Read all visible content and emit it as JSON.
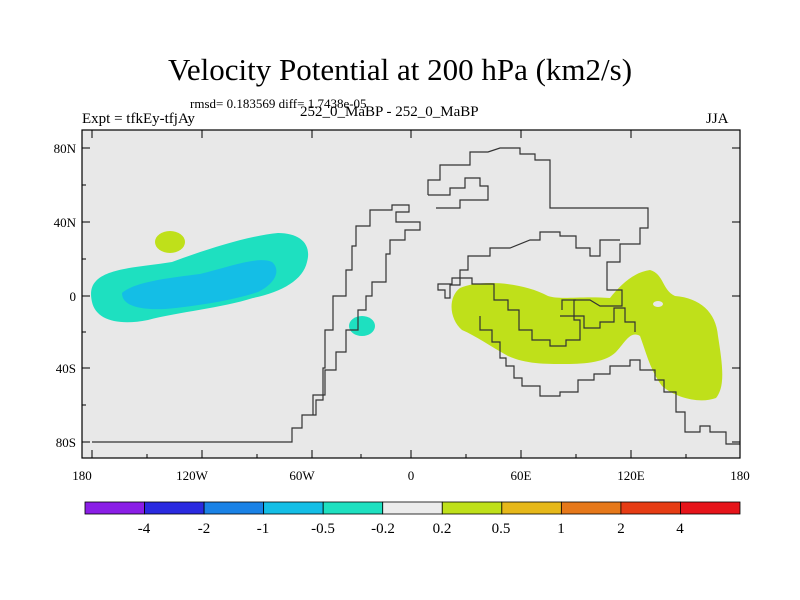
{
  "title": "Velocity Potential at 200 hPa (km2/s)",
  "subtitle": "rmsd= 0.183569 diff= 1.7438e-05",
  "left_label": "Expt = tfkEy-tfjAy",
  "center_label": "252_0_MaBP - 252_0_MaBP",
  "right_label": "JJA",
  "chart_data": {
    "type": "heatmap",
    "title": "Velocity Potential at 200 hPa (km2/s)",
    "x_ticks": [
      "180",
      "120W",
      "60W",
      "0",
      "60E",
      "120E",
      "180"
    ],
    "y_ticks": [
      "80N",
      "40N",
      "0",
      "40S",
      "80S"
    ],
    "xlim": [
      -180,
      180
    ],
    "ylim": [
      -90,
      90
    ],
    "colorbar": {
      "labels": [
        "-4",
        "-2",
        "-1",
        "-0.5",
        "-0.2",
        "0.2",
        "0.5",
        "1",
        "2",
        "4"
      ],
      "colors": [
        "#8a1ee6",
        "#2a2ae0",
        "#1a82e6",
        "#14bee6",
        "#1ee0c0",
        "#ececec",
        "#bfe01a",
        "#e6b81a",
        "#e6781a",
        "#e63c14",
        "#e6141a"
      ]
    },
    "regions": [
      {
        "level": "-0.5 to -0.2",
        "color": "#1ee0c0",
        "location": "central Pacific, 0-25N"
      },
      {
        "level": "-1 to -0.5",
        "color": "#14bee6",
        "location": "central Pacific, 0-10N"
      },
      {
        "level": "0.2 to 0.5",
        "color": "#bfe01a",
        "location": "small patch near 150W, 30N"
      },
      {
        "level": "-0.5 to -0.2",
        "color": "#1ee0c0",
        "location": "small patch near 30W, 15S"
      },
      {
        "level": "0.2 to 0.5",
        "color": "#bfe01a",
        "location": "Indian Ocean to western Pacific, 10N-50S"
      }
    ],
    "grid": false,
    "background": "#e8e8e8"
  }
}
